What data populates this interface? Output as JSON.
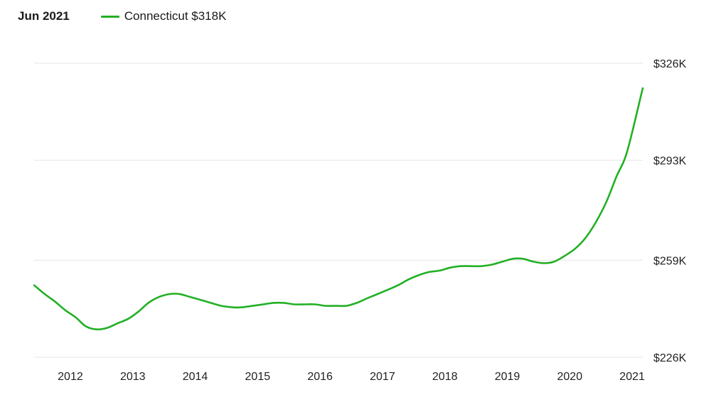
{
  "header": {
    "date_label": "Jun 2021",
    "series_label": "Connecticut $318K"
  },
  "colors": {
    "line": "#22b024",
    "grid": "#e6e6e6",
    "text": "#222222"
  },
  "chart_data": {
    "type": "line",
    "title": "",
    "xlabel": "",
    "ylabel": "",
    "y_axis_position": "right",
    "grid": "horizontal",
    "legend_position": "top-left",
    "xlim": [
      2011.75,
      2021.5
    ],
    "ylim": [
      226,
      326
    ],
    "x_ticks": [
      {
        "value": 2012,
        "label": "2012"
      },
      {
        "value": 2013,
        "label": "2013"
      },
      {
        "value": 2014,
        "label": "2014"
      },
      {
        "value": 2015,
        "label": "2015"
      },
      {
        "value": 2016,
        "label": "2016"
      },
      {
        "value": 2017,
        "label": "2017"
      },
      {
        "value": 2018,
        "label": "2018"
      },
      {
        "value": 2019,
        "label": "2019"
      },
      {
        "value": 2020,
        "label": "2020"
      },
      {
        "value": 2021,
        "label": "2021"
      }
    ],
    "y_ticks": [
      {
        "value": 226,
        "label": "$226K"
      },
      {
        "value": 259,
        "label": "$259K"
      },
      {
        "value": 293,
        "label": "$293K"
      },
      {
        "value": 326,
        "label": "$326K"
      }
    ],
    "series": [
      {
        "name": "Connecticut",
        "color": "#22b024",
        "points": [
          [
            2011.75,
            250.5
          ],
          [
            2011.92,
            247.5
          ],
          [
            2012.08,
            245.0
          ],
          [
            2012.25,
            242.0
          ],
          [
            2012.42,
            239.5
          ],
          [
            2012.58,
            236.5
          ],
          [
            2012.75,
            235.5
          ],
          [
            2012.92,
            236.0
          ],
          [
            2013.08,
            237.5
          ],
          [
            2013.25,
            239.0
          ],
          [
            2013.42,
            241.5
          ],
          [
            2013.58,
            244.5
          ],
          [
            2013.75,
            246.5
          ],
          [
            2013.92,
            247.5
          ],
          [
            2014.08,
            247.5
          ],
          [
            2014.25,
            246.5
          ],
          [
            2014.42,
            245.5
          ],
          [
            2014.58,
            244.5
          ],
          [
            2014.75,
            243.5
          ],
          [
            2014.92,
            243.0
          ],
          [
            2015.08,
            243.0
          ],
          [
            2015.25,
            243.5
          ],
          [
            2015.42,
            244.0
          ],
          [
            2015.58,
            244.5
          ],
          [
            2015.75,
            244.5
          ],
          [
            2015.92,
            244.0
          ],
          [
            2016.08,
            244.0
          ],
          [
            2016.25,
            244.0
          ],
          [
            2016.42,
            243.5
          ],
          [
            2016.58,
            243.5
          ],
          [
            2016.75,
            243.5
          ],
          [
            2016.92,
            244.5
          ],
          [
            2017.08,
            246.0
          ],
          [
            2017.25,
            247.5
          ],
          [
            2017.42,
            249.0
          ],
          [
            2017.58,
            250.5
          ],
          [
            2017.75,
            252.5
          ],
          [
            2017.92,
            254.0
          ],
          [
            2018.08,
            255.0
          ],
          [
            2018.25,
            255.5
          ],
          [
            2018.42,
            256.5
          ],
          [
            2018.58,
            257.0
          ],
          [
            2018.75,
            257.0
          ],
          [
            2018.92,
            257.0
          ],
          [
            2019.08,
            257.5
          ],
          [
            2019.25,
            258.5
          ],
          [
            2019.42,
            259.5
          ],
          [
            2019.58,
            259.5
          ],
          [
            2019.75,
            258.5
          ],
          [
            2019.92,
            258.0
          ],
          [
            2020.08,
            258.5
          ],
          [
            2020.25,
            260.5
          ],
          [
            2020.42,
            263.0
          ],
          [
            2020.58,
            266.5
          ],
          [
            2020.75,
            272.0
          ],
          [
            2020.92,
            279.0
          ],
          [
            2021.08,
            287.5
          ],
          [
            2021.25,
            296.0
          ],
          [
            2021.5,
            317.5
          ]
        ]
      }
    ]
  }
}
